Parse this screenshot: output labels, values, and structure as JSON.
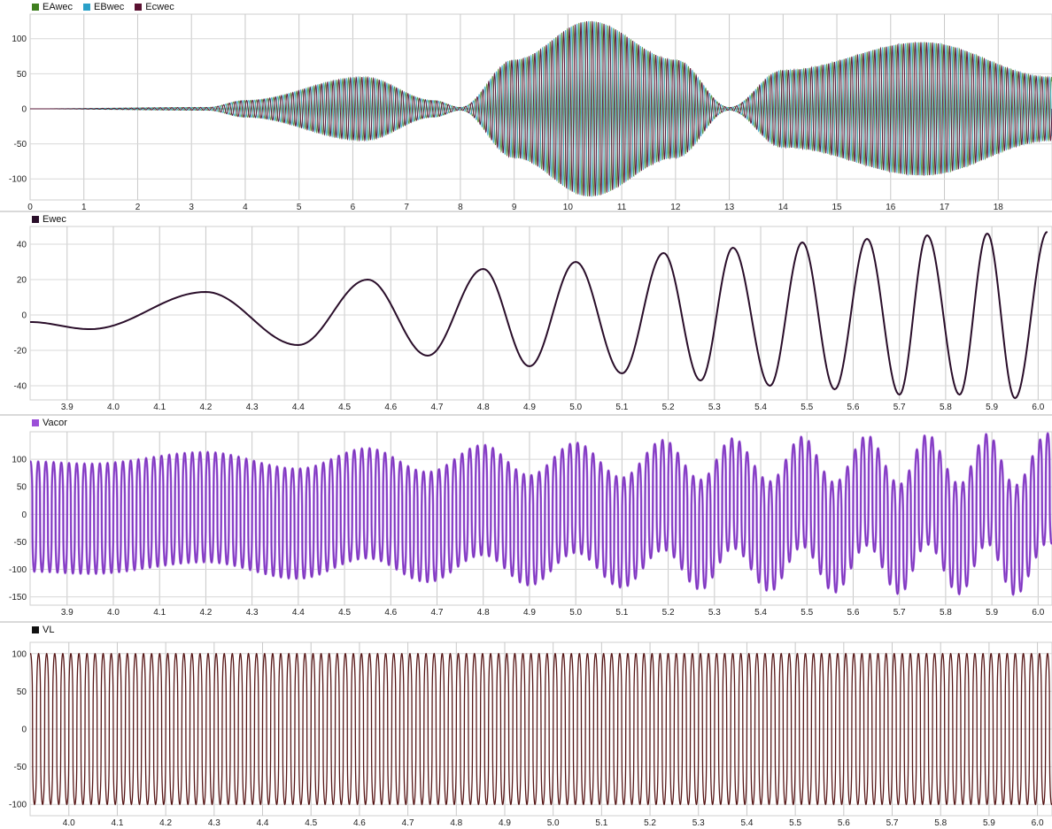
{
  "chart_data": [
    {
      "type": "line",
      "title": "",
      "xlabel": "",
      "ylabel": "",
      "xlim": [
        0,
        19
      ],
      "ylim": [
        -130,
        135
      ],
      "x_ticks": [
        0,
        1,
        2,
        3,
        4,
        5,
        6,
        7,
        8,
        9,
        10,
        11,
        12,
        13,
        14,
        15,
        16,
        17,
        18
      ],
      "y_ticks": [
        -100,
        -50,
        0,
        50,
        100
      ],
      "grid": true,
      "legend_position": "top-left",
      "series": [
        {
          "name": "EAwec",
          "color": "#3f7f1f"
        },
        {
          "name": "EBwec",
          "color": "#2aa0c8"
        },
        {
          "name": "Ecwec",
          "color": "#5a1030"
        }
      ],
      "envelope": {
        "description_points_x": [
          0,
          3.3,
          4.0,
          6.2,
          7.5,
          8.0,
          9.0,
          10.4,
          12.0,
          13.0,
          14.0,
          16.6,
          19.0
        ],
        "amplitude": [
          0,
          2,
          12,
          45,
          12,
          2,
          70,
          125,
          70,
          2,
          55,
          95,
          45
        ]
      }
    },
    {
      "type": "line",
      "title": "",
      "xlabel": "",
      "ylabel": "",
      "xlim": [
        3.82,
        6.03
      ],
      "ylim": [
        -48,
        50
      ],
      "x_ticks": [
        3.9,
        4.0,
        4.1,
        4.2,
        4.3,
        4.4,
        4.5,
        4.6,
        4.7,
        4.8,
        4.9,
        5.0,
        5.1,
        5.2,
        5.3,
        5.4,
        5.5,
        5.6,
        5.7,
        5.8,
        5.9,
        6.0
      ],
      "y_ticks": [
        -40,
        -20,
        0,
        20,
        40
      ],
      "grid": true,
      "legend_position": "top-left",
      "series": [
        {
          "name": "Ewec",
          "color": "#2a0e2a",
          "extrema": [
            {
              "x": 3.82,
              "y": -4
            },
            {
              "x": 3.95,
              "y": -8
            },
            {
              "x": 4.2,
              "y": 13
            },
            {
              "x": 4.4,
              "y": -17
            },
            {
              "x": 4.55,
              "y": 20
            },
            {
              "x": 4.68,
              "y": -23
            },
            {
              "x": 4.8,
              "y": 26
            },
            {
              "x": 4.9,
              "y": -29
            },
            {
              "x": 5.0,
              "y": 30
            },
            {
              "x": 5.1,
              "y": -33
            },
            {
              "x": 5.19,
              "y": 35
            },
            {
              "x": 5.27,
              "y": -37
            },
            {
              "x": 5.34,
              "y": 38
            },
            {
              "x": 5.42,
              "y": -40
            },
            {
              "x": 5.49,
              "y": 41
            },
            {
              "x": 5.56,
              "y": -42
            },
            {
              "x": 5.63,
              "y": 43
            },
            {
              "x": 5.7,
              "y": -45
            },
            {
              "x": 5.76,
              "y": 45
            },
            {
              "x": 5.83,
              "y": -45
            },
            {
              "x": 5.89,
              "y": 46
            },
            {
              "x": 5.95,
              "y": -47
            },
            {
              "x": 6.02,
              "y": 47
            }
          ]
        }
      ]
    },
    {
      "type": "line",
      "title": "",
      "xlabel": "",
      "ylabel": "",
      "xlim": [
        3.82,
        6.03
      ],
      "ylim": [
        -165,
        150
      ],
      "x_ticks": [
        3.9,
        4.0,
        4.1,
        4.2,
        4.3,
        4.4,
        4.5,
        4.6,
        4.7,
        4.8,
        4.9,
        5.0,
        5.1,
        5.2,
        5.3,
        5.4,
        5.5,
        5.6,
        5.7,
        5.8,
        5.9,
        6.0
      ],
      "y_ticks": [
        -150,
        -100,
        -50,
        0,
        50,
        100
      ],
      "grid": true,
      "legend_position": "top-left",
      "series": [
        {
          "name": "Vacor",
          "color": "#9b4fd8",
          "stroke": "#4a1a8a",
          "carrier_amplitude": 100
        }
      ]
    },
    {
      "type": "line",
      "title": "",
      "xlabel": "",
      "ylabel": "",
      "xlim": [
        3.92,
        6.03
      ],
      "ylim": [
        -115,
        115
      ],
      "x_ticks": [
        4.0,
        4.1,
        4.2,
        4.3,
        4.4,
        4.5,
        4.6,
        4.7,
        4.8,
        4.9,
        5.0,
        5.1,
        5.2,
        5.3,
        5.4,
        5.5,
        5.6,
        5.7,
        5.8,
        5.9,
        6.0
      ],
      "y_ticks": [
        -100,
        -50,
        0,
        50,
        100
      ],
      "grid": true,
      "legend_position": "top-left",
      "series": [
        {
          "name": "VL",
          "color": "#6a1a1a",
          "amplitude": 100
        }
      ]
    }
  ]
}
